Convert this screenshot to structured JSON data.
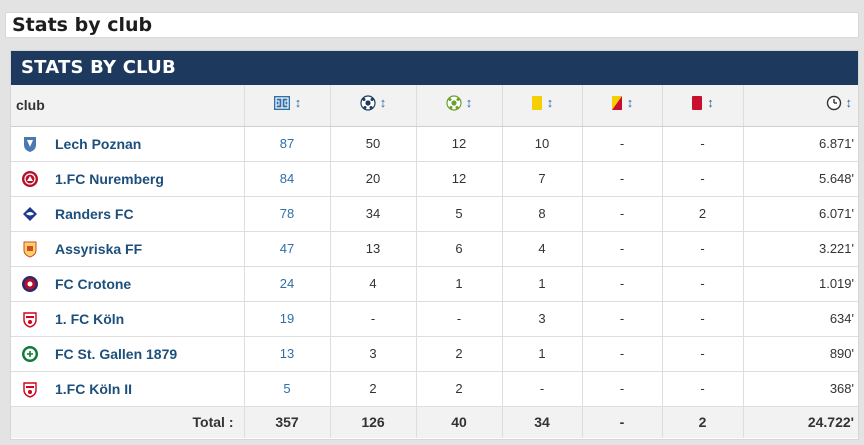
{
  "page": {
    "title": "Stats by club"
  },
  "box": {
    "title": "STATS BY CLUB"
  },
  "columns": {
    "club": "club",
    "icons": [
      "appearances-icon",
      "goals-icon",
      "assists-icon",
      "yellow-card-icon",
      "second-yellow-icon",
      "red-card-icon",
      "minutes-icon"
    ],
    "sort_symbol": "↕"
  },
  "rows": [
    {
      "club": "Lech Poznan",
      "crest": "lech-poznan-crest",
      "apps": "87",
      "goals": "50",
      "assists": "12",
      "yellow": "10",
      "second_yellow": "-",
      "red": "-",
      "minutes": "6.871'"
    },
    {
      "club": "1.FC Nuremberg",
      "crest": "nuremberg-crest",
      "apps": "84",
      "goals": "20",
      "assists": "12",
      "yellow": "7",
      "second_yellow": "-",
      "red": "-",
      "minutes": "5.648'"
    },
    {
      "club": "Randers FC",
      "crest": "randers-crest",
      "apps": "78",
      "goals": "34",
      "assists": "5",
      "yellow": "8",
      "second_yellow": "-",
      "red": "2",
      "minutes": "6.071'"
    },
    {
      "club": "Assyriska FF",
      "crest": "assyriska-crest",
      "apps": "47",
      "goals": "13",
      "assists": "6",
      "yellow": "4",
      "second_yellow": "-",
      "red": "-",
      "minutes": "3.221'"
    },
    {
      "club": "FC Crotone",
      "crest": "crotone-crest",
      "apps": "24",
      "goals": "4",
      "assists": "1",
      "yellow": "1",
      "second_yellow": "-",
      "red": "-",
      "minutes": "1.019'"
    },
    {
      "club": "1. FC Köln",
      "crest": "koln-crest",
      "apps": "19",
      "goals": "-",
      "assists": "-",
      "yellow": "3",
      "second_yellow": "-",
      "red": "-",
      "minutes": "634'"
    },
    {
      "club": "FC St. Gallen 1879",
      "crest": "st-gallen-crest",
      "apps": "13",
      "goals": "3",
      "assists": "2",
      "yellow": "1",
      "second_yellow": "-",
      "red": "-",
      "minutes": "890'"
    },
    {
      "club": "1.FC Köln II",
      "crest": "koln-ii-crest",
      "apps": "5",
      "goals": "2",
      "assists": "2",
      "yellow": "-",
      "second_yellow": "-",
      "red": "-",
      "minutes": "368'"
    }
  ],
  "totals": {
    "label": "Total :",
    "apps": "357",
    "goals": "126",
    "assists": "40",
    "yellow": "34",
    "second_yellow": "-",
    "red": "2",
    "minutes": "24.722'"
  },
  "colors": {
    "header_bg": "#1d3a5e",
    "link": "#1d4f7c",
    "yellow_card": "#f5d000",
    "red_card": "#c8102e"
  }
}
